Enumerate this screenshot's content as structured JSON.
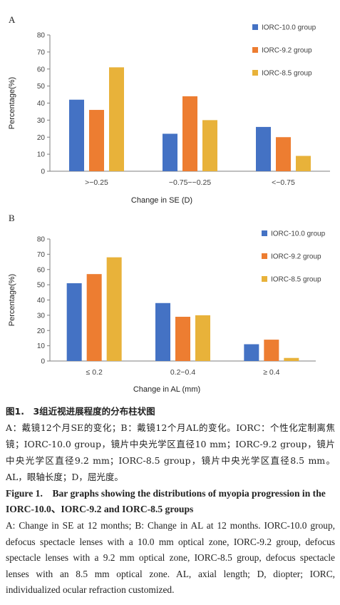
{
  "chart_data": [
    {
      "panel": "A",
      "type": "bar",
      "categories": [
        ">−0.25",
        "−0.75−−0.25",
        "<−0.75"
      ],
      "series": [
        {
          "name": "IORC-10.0 group",
          "color": "#4472C4",
          "values": [
            42,
            22,
            26
          ]
        },
        {
          "name": "IORC-9.2 group",
          "color": "#ED7D31",
          "values": [
            36,
            44,
            20
          ]
        },
        {
          "name": "IORC-8.5 group",
          "color": "#E8B23A",
          "values": [
            61,
            30,
            9
          ]
        }
      ],
      "xlabel": "Change in SE (D)",
      "ylabel": "Percentage(%)",
      "ylim": [
        0,
        80
      ],
      "yticks": [
        "0",
        "10",
        "20",
        "30",
        "40",
        "50",
        "60",
        "70",
        "80"
      ],
      "grid": false,
      "legend": "top-right"
    },
    {
      "panel": "B",
      "type": "bar",
      "categories": [
        "≤ 0.2",
        "0.2−0.4",
        "≥ 0.4"
      ],
      "series": [
        {
          "name": "IORC-10.0 group",
          "color": "#4472C4",
          "values": [
            51,
            38,
            11
          ]
        },
        {
          "name": "IORC-9.2 group",
          "color": "#ED7D31",
          "values": [
            57,
            29,
            14
          ]
        },
        {
          "name": "IORC-8.5 group",
          "color": "#E8B23A",
          "values": [
            68,
            30,
            2
          ]
        }
      ],
      "xlabel": "Change in AL (mm)",
      "ylabel": "Percentage(%)",
      "ylim": [
        0,
        80
      ],
      "yticks": [
        "0",
        "10",
        "20",
        "30",
        "40",
        "50",
        "60",
        "70",
        "80"
      ],
      "grid": false,
      "legend": "top-right"
    }
  ],
  "caption": {
    "zh_title": "图1.　3组近视进展程度的分布柱状图",
    "zh_body": "A：戴镜12个月SE的变化；B：戴镜12个月AL的变化。IORC：个性化定制离焦镜；IORC-10.0 group，镜片中央光学区直径10 mm；IORC-9.2 group，镜片中央光学区直径9.2 mm；IORC-8.5 group，镜片中央光学区直径8.5 mm。AL，眼轴长度；D，屈光度。",
    "en_title": "Figure 1.　Bar graphs showing the distributions of myopia progression in the IORC-10.0、IORC-9.2 and IORC-8.5 groups",
    "en_body": "A: Change in SE at 12 months; B: Change in AL at 12 months. IORC-10.0 group, defocus spectacle lenses with a 10.0 mm optical zone, IORC-9.2 group, defocus spectacle lenses with a 9.2 mm optical zone, IORC-8.5 group, defocus spectacle lenses with an 8.5 mm optical zone. AL, axial length; D, diopter; IORC, individualized ocular refraction customized."
  }
}
